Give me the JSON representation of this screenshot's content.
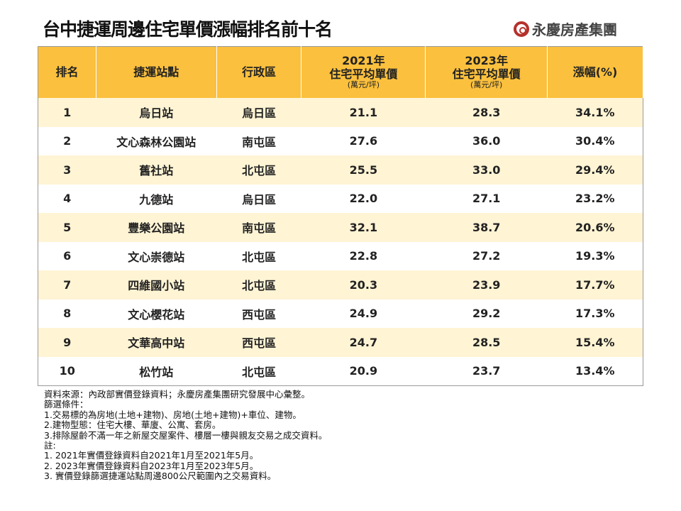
{
  "title": "台中捷運周邊住宅單價漲幅排名前十名",
  "logo": {
    "text": "永慶房產集團",
    "color": "#b5312b"
  },
  "colors": {
    "header": "#fbc03d",
    "row_alt": "#fff4d4"
  },
  "table": {
    "headers": [
      {
        "line1": "排名"
      },
      {
        "line1": "捷運站點"
      },
      {
        "line1": "行政區"
      },
      {
        "line1": "2021年",
        "line2": "住宅平均單價",
        "unit": "(萬元/坪)"
      },
      {
        "line1": "2023年",
        "line2": "住宅平均單價",
        "unit": "(萬元/坪)"
      },
      {
        "line1": "漲幅(%)"
      }
    ],
    "rows": [
      [
        "1",
        "烏日站",
        "烏日區",
        "21.1",
        "28.3",
        "34.1%"
      ],
      [
        "2",
        "文心森林公園站",
        "南屯區",
        "27.6",
        "36.0",
        "30.4%"
      ],
      [
        "3",
        "舊社站",
        "北屯區",
        "25.5",
        "33.0",
        "29.4%"
      ],
      [
        "4",
        "九德站",
        "烏日區",
        "22.0",
        "27.1",
        "23.2%"
      ],
      [
        "5",
        "豐樂公園站",
        "南屯區",
        "32.1",
        "38.7",
        "20.6%"
      ],
      [
        "6",
        "文心崇德站",
        "北屯區",
        "22.8",
        "27.2",
        "19.3%"
      ],
      [
        "7",
        "四維國小站",
        "北屯區",
        "20.3",
        "23.9",
        "17.7%"
      ],
      [
        "8",
        "文心櫻花站",
        "西屯區",
        "24.9",
        "29.2",
        "17.3%"
      ],
      [
        "9",
        "文華高中站",
        "西屯區",
        "24.7",
        "28.5",
        "15.4%"
      ],
      [
        "10",
        "松竹站",
        "北屯區",
        "20.9",
        "23.7",
        "13.4%"
      ]
    ]
  },
  "notes": [
    "資料來源：內政部實價登錄資料；永慶房產集團研究發展中心彙整。",
    "篩選條件：",
    "1.交易標的為房地(土地+建物)、房地(土地+建物)+車位、建物。",
    "2.建物型態：住宅大樓、華廈、公寓、套房。",
    "3.排除屋齡不滿一年之新屋交屋案件、樓層一樓與親友交易之成交資料。",
    "註:",
    "1. 2021年實價登錄資料自2021年1月至2021年5月。",
    "2. 2023年實價登錄資料自2023年1月至2023年5月。",
    "3. 實價登錄篩選捷運站點周邊800公尺範圍內之交易資料。"
  ]
}
